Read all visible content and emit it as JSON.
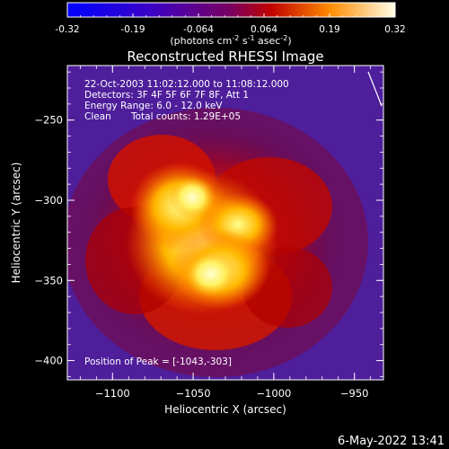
{
  "colorbar": {
    "ticks": [
      "-0.32",
      "-0.19",
      "-0.064",
      "0.064",
      "0.19",
      "0.32"
    ],
    "unit_prefix": "(photons cm",
    "unit_exp1": "-2",
    "unit_mid": " s",
    "unit_exp2": "-1",
    "unit_mid2": " asec",
    "unit_exp3": "-2",
    "unit_suffix": ")",
    "range": [
      -0.32,
      0.32
    ]
  },
  "title": "Reconstructed RHESSI Image",
  "info": {
    "line1": "22-Oct-2003 11:02:12.000 to 11:08:12.000",
    "line2": "Detectors: 3F 4F 5F 6F 7F 8F, Att 1",
    "line3": "Energy Range: 6.0 - 12.0 keV",
    "line4_a": "Clean",
    "line4_b": "Total counts: 1.29E+05"
  },
  "peak_text": "Position of Peak = [-1043,-303]",
  "axes": {
    "xlabel": "Heliocentric X (arcsec)",
    "ylabel": "Heliocentric Y (arcsec)",
    "xticks": [
      "-1100",
      "-1050",
      "-1000",
      "-950"
    ],
    "yticks": [
      "-250",
      "-300",
      "-350",
      "-400"
    ],
    "xlim": [
      -1128,
      -932
    ],
    "ylim": [
      -412,
      -216
    ]
  },
  "footer_date": "6-May-2022 13:41"
}
